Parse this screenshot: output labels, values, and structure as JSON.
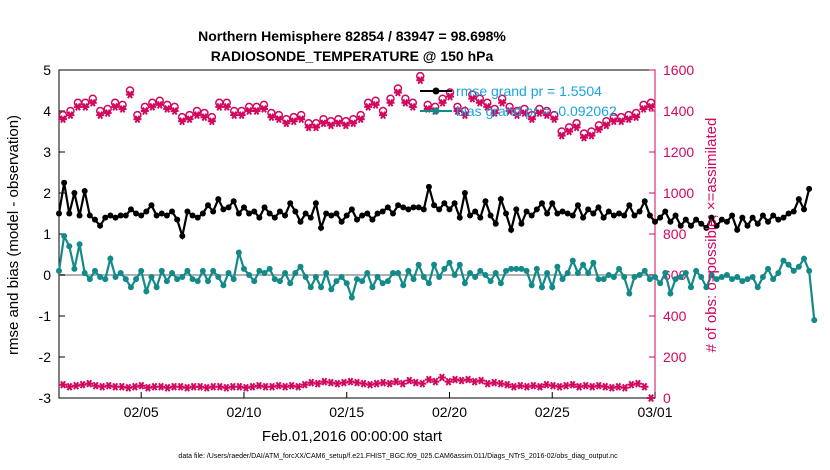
{
  "chart_data": {
    "type": "line",
    "title": [
      "Northern Hemisphere 82854 / 83947 = 98.698%",
      "RADIOSONDE_TEMPERATURE @ 150 hPa"
    ],
    "xlabel": "Feb.01,2016 00:00:00 start",
    "ylabel_left": "rmse and bias (model - observation)",
    "ylabel_right": "# of obs: o=possible; ×=assimilated",
    "footnote": "data file: /Users/raeder/DAI/ATM_forcXX/CAM6_setup/f.e21.FHIST_BGC.f09_025.CAM6assim.011/Diags_NTrS_2016-02/obs_diag_output.nc",
    "x_ticks": [
      "02/05",
      "02/10",
      "02/15",
      "02/20",
      "02/25",
      "03/01"
    ],
    "x_tick_days": [
      5,
      10,
      15,
      20,
      25,
      30
    ],
    "xlim": [
      1,
      30
    ],
    "ylim_left": [
      -3,
      5
    ],
    "y_ticks_left": [
      "-3",
      "-2",
      "-1",
      "0",
      "1",
      "2",
      "3",
      "4",
      "5"
    ],
    "ylim_right": [
      0,
      1600
    ],
    "y_ticks_right": [
      "0",
      "200",
      "400",
      "600",
      "800",
      "1000",
      "1200",
      "1400",
      "1600"
    ],
    "legend": [
      "rmse grand pr = 1.5504",
      "bias grand pr = -0.092062"
    ],
    "colors": {
      "rmse": "#000000",
      "bias": "#138a8a",
      "obs": "#d1085e",
      "legend_text": "#1aa3e0",
      "zero_line": "#b0b0b0"
    },
    "x_start_day": 1,
    "x_step_days": 0.25,
    "series": [
      {
        "name": "rmse",
        "axis": "left",
        "values": [
          1.5,
          2.25,
          1.5,
          2.0,
          1.45,
          2.05,
          1.45,
          1.35,
          1.2,
          1.4,
          1.45,
          1.4,
          1.45,
          1.45,
          1.6,
          1.5,
          1.45,
          1.55,
          1.7,
          1.45,
          1.5,
          1.45,
          1.55,
          1.35,
          0.95,
          1.55,
          1.45,
          1.4,
          1.5,
          1.7,
          1.55,
          1.85,
          1.6,
          1.65,
          1.8,
          1.5,
          1.65,
          1.5,
          1.55,
          1.4,
          1.65,
          1.5,
          1.4,
          1.55,
          1.45,
          1.75,
          1.55,
          1.3,
          1.5,
          1.4,
          1.75,
          1.15,
          1.5,
          1.45,
          1.5,
          1.3,
          1.45,
          1.6,
          1.35,
          1.45,
          1.5,
          1.35,
          1.5,
          1.55,
          1.65,
          1.5,
          1.7,
          1.65,
          1.6,
          1.65,
          1.65,
          1.6,
          2.15,
          1.7,
          1.6,
          1.75,
          1.6,
          1.75,
          1.4,
          2.0,
          1.45,
          1.55,
          1.4,
          1.8,
          1.45,
          1.25,
          1.85,
          1.5,
          1.1,
          1.6,
          1.25,
          1.55,
          1.45,
          1.6,
          1.75,
          1.5,
          1.75,
          1.5,
          1.55,
          1.5,
          1.45,
          1.7,
          1.4,
          1.6,
          1.5,
          1.65,
          1.4,
          1.55,
          1.45,
          1.5,
          1.45,
          1.7,
          1.45,
          1.55,
          1.8,
          1.45,
          1.3,
          1.4,
          1.55,
          1.3,
          1.45,
          1.2,
          1.35,
          1.2,
          1.35,
          1.25,
          1.15,
          1.4,
          1.2,
          1.35,
          1.3,
          1.45,
          1.1,
          1.4,
          1.2,
          1.4,
          1.25,
          1.45,
          1.3,
          1.45,
          1.35,
          1.4,
          1.5,
          1.55,
          1.85,
          1.6,
          2.1
        ]
      },
      {
        "name": "bias",
        "axis": "left",
        "values": [
          0.1,
          0.95,
          0.7,
          0.15,
          0.75,
          0.05,
          -0.1,
          0.1,
          -0.05,
          -0.1,
          0.4,
          -0.05,
          0.05,
          -0.1,
          -0.3,
          -0.1,
          0.1,
          -0.4,
          -0.05,
          -0.3,
          0.1,
          -0.15,
          0.05,
          -0.1,
          -0.05,
          0.1,
          -0.1,
          -0.15,
          0.1,
          -0.15,
          0.1,
          -0.05,
          -0.25,
          0.05,
          -0.1,
          0.55,
          0.15,
          0.0,
          -0.15,
          0.1,
          0.05,
          0.15,
          -0.1,
          -0.15,
          0.05,
          -0.2,
          0.05,
          0.2,
          -0.05,
          -0.3,
          -0.05,
          -0.3,
          0.05,
          -0.35,
          -0.15,
          -0.05,
          -0.2,
          -0.55,
          -0.1,
          -0.15,
          0.05,
          -0.3,
          -0.05,
          -0.2,
          -0.15,
          0.05,
          0.05,
          -0.25,
          0.1,
          -0.1,
          0.25,
          -0.05,
          -0.2,
          0.25,
          -0.05,
          0.15,
          0.3,
          0.0,
          0.25,
          -0.2,
          0.05,
          -0.05,
          0.1,
          0.0,
          -0.15,
          0.05,
          -0.2,
          0.1,
          0.15,
          0.15,
          0.15,
          0.1,
          -0.25,
          0.15,
          -0.3,
          0.05,
          -0.3,
          0.2,
          -0.1,
          0.05,
          0.35,
          0.05,
          0.25,
          0.05,
          0.3,
          -0.1,
          -0.1,
          0.0,
          -0.05,
          0.15,
          -0.05,
          -0.45,
          -0.05,
          0.0,
          0.1,
          -0.1,
          -0.05,
          -0.2,
          0.05,
          -0.45,
          -0.1,
          -0.05,
          0.05,
          -0.3,
          0.1,
          -0.05,
          -0.3,
          0.0,
          -0.1,
          -0.05,
          0.0,
          -0.1,
          -0.05,
          -0.15,
          -0.1,
          -0.05,
          -0.3,
          -0.05,
          0.15,
          -0.1,
          0.05,
          0.35,
          0.25,
          0.1,
          0.2,
          0.4,
          0.1,
          -1.1
        ]
      },
      {
        "name": "obs_possible_high",
        "axis": "right",
        "values": [
          1380,
          1400,
          1440,
          1440,
          1460,
          1400,
          1410,
          1440,
          1430,
          1500,
          1380,
          1420,
          1440,
          1450,
          1430,
          1420,
          1370,
          1380,
          1400,
          1390,
          1370,
          1440,
          1440,
          1400,
          1400,
          1420,
          1420,
          1430,
          1390,
          1380,
          1360,
          1370,
          1380,
          1340,
          1340,
          1360,
          1350,
          1360,
          1350,
          1360,
          1380,
          1440,
          1450,
          1400,
          1460,
          1510,
          1460,
          1440,
          1570,
          1430,
          1420,
          1460,
          1490,
          1420,
          1400,
          1480,
          1460,
          1440,
          1410,
          1460,
          1420,
          1400,
          1410,
          1380,
          1410,
          1400,
          1380,
          1300,
          1320,
          1340,
          1290,
          1300,
          1330,
          1350,
          1370,
          1370,
          1380,
          1390,
          1430,
          1440
        ]
      },
      {
        "name": "obs_assimilated_high",
        "axis": "right",
        "values": [
          1360,
          1380,
          1420,
          1420,
          1440,
          1380,
          1390,
          1420,
          1410,
          1480,
          1360,
          1400,
          1420,
          1430,
          1410,
          1400,
          1350,
          1360,
          1380,
          1370,
          1350,
          1420,
          1420,
          1380,
          1380,
          1400,
          1400,
          1410,
          1370,
          1360,
          1340,
          1350,
          1360,
          1320,
          1320,
          1340,
          1330,
          1340,
          1330,
          1340,
          1360,
          1420,
          1430,
          1380,
          1440,
          1490,
          1440,
          1420,
          1550,
          1410,
          1400,
          1440,
          1470,
          1400,
          1380,
          1460,
          1440,
          1420,
          1390,
          1440,
          1400,
          1380,
          1390,
          1360,
          1390,
          1380,
          1360,
          1280,
          1300,
          1320,
          1270,
          1280,
          1310,
          1330,
          1350,
          1350,
          1360,
          1370,
          1410,
          1420
        ]
      },
      {
        "name": "obs_low",
        "axis": "right",
        "values": [
          65,
          55,
          60,
          65,
          70,
          60,
          55,
          60,
          55,
          55,
          50,
          55,
          60,
          50,
          55,
          55,
          50,
          55,
          55,
          50,
          55,
          55,
          50,
          55,
          55,
          50,
          55,
          55,
          50,
          55,
          60,
          55,
          55,
          60,
          55,
          60,
          55,
          65,
          75,
          70,
          80,
          75,
          70,
          75,
          80,
          75,
          70,
          65,
          70,
          75,
          70,
          80,
          70,
          85,
          75,
          70,
          90,
          80,
          100,
          80,
          90,
          85,
          90,
          80,
          85,
          70,
          75,
          70,
          65,
          55,
          60,
          55,
          60,
          55,
          65,
          60,
          55,
          60,
          65,
          55,
          60,
          55,
          60,
          55,
          50,
          55,
          50,
          65,
          70,
          55,
          0
        ]
      }
    ]
  }
}
